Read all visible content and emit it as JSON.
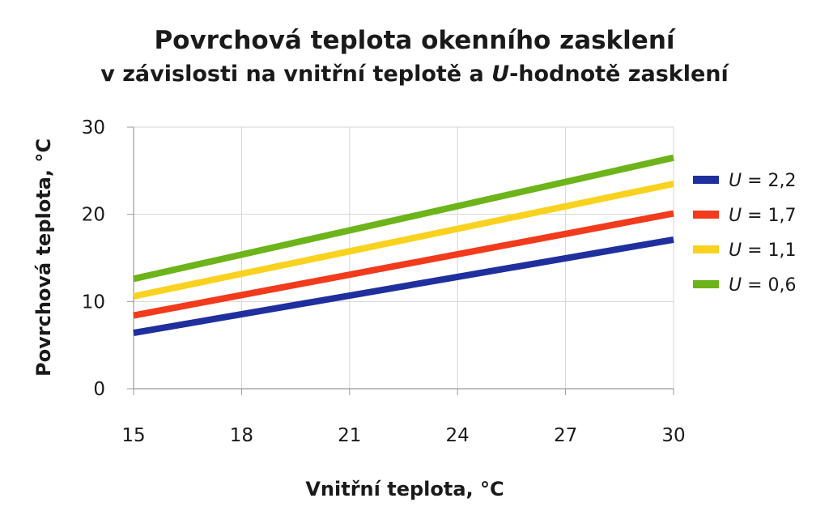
{
  "chart_data": {
    "type": "line",
    "title_line1": "Povrchová teplota okenního zasklení",
    "title_line2_pre": "v závislosti na vnitřní teplotě a ",
    "title_line2_italic": "U",
    "title_line2_post": "-hodnotě zasklení",
    "xlabel": "Vnitřní teplota, °C",
    "ylabel": "Povrchová teplota, °C",
    "xlim": [
      15,
      30
    ],
    "ylim": [
      0,
      30
    ],
    "x_ticks": [
      15,
      18,
      21,
      24,
      27,
      30
    ],
    "y_ticks": [
      0,
      10,
      20,
      30
    ],
    "x_tick_labels": [
      "15",
      "18",
      "21",
      "24",
      "27",
      "30"
    ],
    "y_tick_labels": [
      "0",
      "10",
      "20",
      "30"
    ],
    "grid": true,
    "legend_position": "right",
    "series": [
      {
        "name": "U = 2,2",
        "legend_symbol": "U",
        "legend_text": " = 2,2",
        "color": "#1f2f9e",
        "x": [
          15,
          30
        ],
        "y": [
          6.4,
          17.1
        ]
      },
      {
        "name": "U = 1,7",
        "legend_symbol": "U",
        "legend_text": " = 1,7",
        "color": "#f23a1c",
        "x": [
          15,
          30
        ],
        "y": [
          8.4,
          20.1
        ]
      },
      {
        "name": "U = 1,1",
        "legend_symbol": "U",
        "legend_text": " = 1,1",
        "color": "#f9d21f",
        "x": [
          15,
          30
        ],
        "y": [
          10.6,
          23.5
        ]
      },
      {
        "name": "U = 0,6",
        "legend_symbol": "U",
        "legend_text": " = 0,6",
        "color": "#6cb41a",
        "x": [
          15,
          30
        ],
        "y": [
          12.6,
          26.5
        ]
      }
    ]
  }
}
